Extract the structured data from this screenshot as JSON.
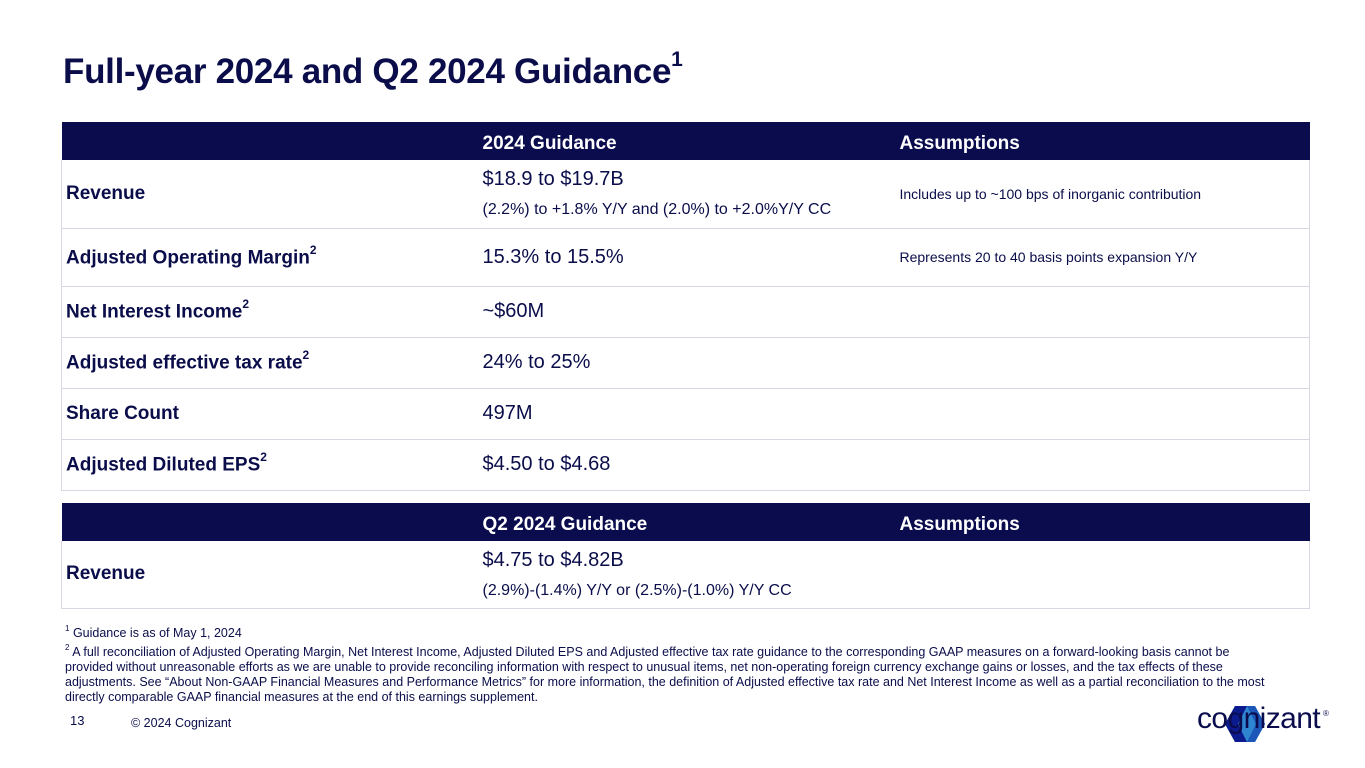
{
  "title": {
    "text": "Full-year 2024 and Q2 2024 Guidance",
    "sup": "1"
  },
  "annual_table": {
    "headers": [
      "",
      "2024 Guidance",
      "Assumptions"
    ],
    "rows": [
      {
        "metric": "Revenue",
        "sup": "",
        "value": "$18.9 to $19.7B",
        "sub": "(2.2%) to +1.8% Y/Y and (2.0%) to +2.0%Y/Y CC",
        "assumption": "Includes up to ~100 bps of inorganic contribution"
      },
      {
        "metric": "Adjusted Operating Margin",
        "sup": "2",
        "value": "15.3% to 15.5%",
        "sub": "",
        "assumption": "Represents 20 to 40 basis points expansion Y/Y"
      },
      {
        "metric": "Net Interest Income",
        "sup": "2",
        "value": "~$60M",
        "sub": "",
        "assumption": ""
      },
      {
        "metric": "Adjusted effective tax rate",
        "sup": "2",
        "value": "24% to 25%",
        "sub": "",
        "assumption": ""
      },
      {
        "metric": "Share Count",
        "sup": "",
        "value": "497M",
        "sub": "",
        "assumption": ""
      },
      {
        "metric": "Adjusted Diluted EPS",
        "sup": "2",
        "value": "$4.50 to $4.68",
        "sub": "",
        "assumption": ""
      }
    ]
  },
  "quarter_table": {
    "headers": [
      "",
      "Q2 2024 Guidance",
      "Assumptions"
    ],
    "rows": [
      {
        "metric": "Revenue",
        "value": "$4.75 to $4.82B",
        "sub": "(2.9%)-(1.4%) Y/Y or (2.5%)-(1.0%) Y/Y CC",
        "assumption": ""
      }
    ]
  },
  "footnotes": [
    {
      "num": "1",
      "text": "Guidance is as of May 1, 2024"
    },
    {
      "num": "2",
      "text": "A full reconciliation of Adjusted Operating Margin, Net Interest Income, Adjusted Diluted EPS and Adjusted effective tax rate guidance to the corresponding GAAP measures on a forward-looking basis cannot be provided without unreasonable  efforts as we are unable to provide reconciling information with respect to unusual items, net non-operating foreign currency exchange gains or losses, and the tax effects of these adjustments. See “About Non-GAAP Financial Measures and Performance Metrics” for more information, the definition of Adjusted effective tax rate and Net Interest Income as well as a partial reconciliation to the most directly comparable GAAP financial measures at the end of this earnings supplement."
    }
  ],
  "footer": {
    "page_number": "13",
    "copyright": "© 2024 Cognizant"
  },
  "logo": {
    "text": "cognizant",
    "reg": "®",
    "icon": "cognizant-logo-icon"
  },
  "colors": {
    "navy": "#0b0c4e",
    "border": "#d6d8e4",
    "logo_light": "#2e86d1",
    "logo_dark": "#0b1b8e"
  }
}
